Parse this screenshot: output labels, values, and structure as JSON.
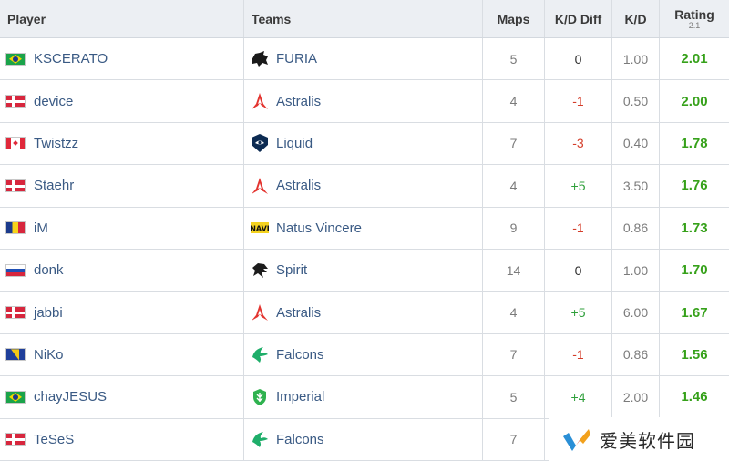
{
  "header": {
    "player": "Player",
    "teams": "Teams",
    "maps": "Maps",
    "kd_diff": "K/D Diff",
    "kd": "K/D",
    "rating": "Rating",
    "rating_version": "2.1"
  },
  "rows": [
    {
      "flag": "br",
      "player": "KSCERATO",
      "team_icon": "furia-logo-icon",
      "team": "FURIA",
      "maps": "5",
      "kd_diff": "0",
      "kd": "1.00",
      "rating": "2.01"
    },
    {
      "flag": "dk",
      "player": "device",
      "team_icon": "astralis-logo-icon",
      "team": "Astralis",
      "maps": "4",
      "kd_diff": "-1",
      "kd": "0.50",
      "rating": "2.00"
    },
    {
      "flag": "ca",
      "player": "Twistzz",
      "team_icon": "liquid-logo-icon",
      "team": "Liquid",
      "maps": "7",
      "kd_diff": "-3",
      "kd": "0.40",
      "rating": "1.78"
    },
    {
      "flag": "dk",
      "player": "Staehr",
      "team_icon": "astralis-logo-icon",
      "team": "Astralis",
      "maps": "4",
      "kd_diff": "+5",
      "kd": "3.50",
      "rating": "1.76"
    },
    {
      "flag": "ro",
      "player": "iM",
      "team_icon": "navi-logo-icon",
      "team": "Natus Vincere",
      "maps": "9",
      "kd_diff": "-1",
      "kd": "0.86",
      "rating": "1.73"
    },
    {
      "flag": "ru",
      "player": "donk",
      "team_icon": "spirit-logo-icon",
      "team": "Spirit",
      "maps": "14",
      "kd_diff": "0",
      "kd": "1.00",
      "rating": "1.70"
    },
    {
      "flag": "dk",
      "player": "jabbi",
      "team_icon": "astralis-logo-icon",
      "team": "Astralis",
      "maps": "4",
      "kd_diff": "+5",
      "kd": "6.00",
      "rating": "1.67"
    },
    {
      "flag": "ba",
      "player": "NiKo",
      "team_icon": "falcons-logo-icon",
      "team": "Falcons",
      "maps": "7",
      "kd_diff": "-1",
      "kd": "0.86",
      "rating": "1.56"
    },
    {
      "flag": "br",
      "player": "chayJESUS",
      "team_icon": "imperial-logo-icon",
      "team": "Imperial",
      "maps": "5",
      "kd_diff": "+4",
      "kd": "2.00",
      "rating": "1.46"
    },
    {
      "flag": "dk",
      "player": "TeSeS",
      "team_icon": "falcons-logo-icon",
      "team": "Falcons",
      "maps": "7",
      "kd_diff": "",
      "kd": "",
      "rating": ""
    }
  ],
  "colors": {
    "positive": "#2e9f3a",
    "negative": "#d43d2a",
    "rating": "#36a11a",
    "link": "#3a5a84"
  },
  "watermark": {
    "text": "爱美软件园"
  }
}
